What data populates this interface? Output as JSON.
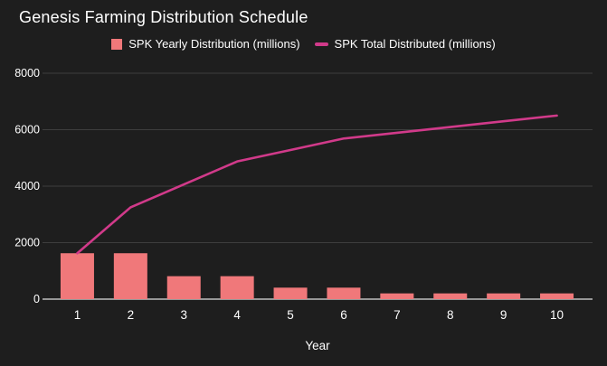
{
  "window": {
    "background": "#1e1e1e"
  },
  "chart": {
    "title": "Genesis Farming Distribution Schedule"
  },
  "legend": {
    "items": [
      {
        "label": "SPK Yearly Distribution (millions)",
        "marker": "square",
        "color": "#f0787a"
      },
      {
        "label": "SPK Total Distributed (millions)",
        "marker": "dash",
        "color": "#d13a8a"
      }
    ]
  },
  "chart_data": {
    "type": "bar+line",
    "title": "Genesis Farming Distribution Schedule",
    "categories": [
      "1",
      "2",
      "3",
      "4",
      "5",
      "6",
      "7",
      "8",
      "9",
      "10"
    ],
    "series": [
      {
        "name": "SPK Yearly Distribution (millions)",
        "type": "bar",
        "color": "#f0787a",
        "values": [
          1625,
          1625,
          812.5,
          812.5,
          406.25,
          406.25,
          203.125,
          203.125,
          203.125,
          203.125
        ]
      },
      {
        "name": "SPK Total Distributed (millions)",
        "type": "line",
        "color": "#d13a8a",
        "values": [
          1625,
          3250,
          4062.5,
          4875,
          5281.25,
          5687.5,
          5890.625,
          6093.75,
          6296.875,
          6500
        ]
      }
    ],
    "xlabel": "Year",
    "ylabel": "",
    "ylim": [
      0,
      8000
    ],
    "yticks": [
      0,
      2000,
      4000,
      6000,
      8000
    ],
    "grid": true,
    "legend_position": "top",
    "colors": {
      "grid": "#3e3e3e",
      "axis": "#bdbdbd",
      "text": "#ffffff",
      "background": "#1e1e1e"
    }
  }
}
